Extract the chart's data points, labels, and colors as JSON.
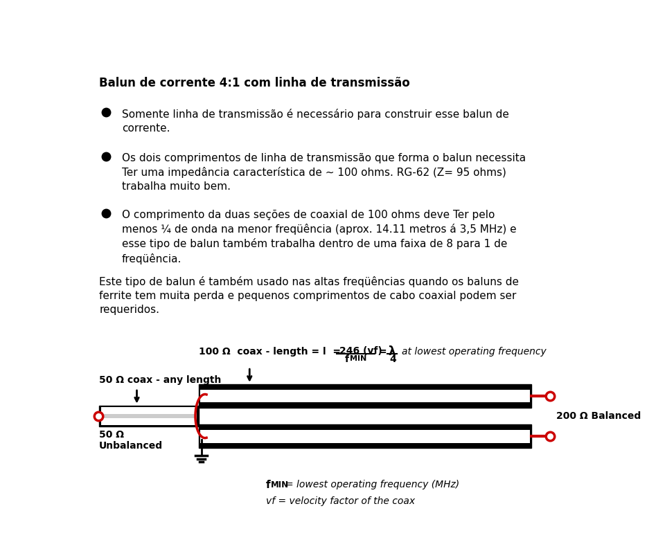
{
  "title": "Balun de corrente 4:1 com linha de transmissão",
  "bullet1": "Somente linha de transmissão é necessário para construir esse balun de\ncorrente.",
  "bullet2": "Os dois comprimentos de linha de transmissão que forma o balun necessita\nTer uma impedância característica de ~ 100 ohms. RG-62 (Z= 95 ohms)\ntrabalha muito bem.",
  "bullet3": "O comprimento da duas seções de coaxial de 100 ohms deve Ter pelo\nmenos ¼ de onda na menor freqüência (aprox. 14.11 metros á 3,5 MHz) e\nesse tipo de balun também trabalha dentro de uma faixa de 8 para 1 de\nfreqüência.",
  "paragraph": "Este tipo de balun é também usado nas altas freqüências quando os baluns de\nferrite tem muita perda e pequenos comprimentos de cabo coaxial podem ser\nrequeridos.",
  "label_50_coax": "50 Ω coax - any length",
  "label_100_coax": "100 Ω  coax - length = l  =",
  "label_50_unbalanced": "50 Ω\nUnbalanced",
  "label_200_balanced": "200 Ω Balanced",
  "label_fmin_desc": "= lowest operating frequency (MHz)",
  "label_vf": "vf = velocity factor of the coax",
  "bg_color": "#ffffff",
  "text_color": "#000000",
  "red_color": "#cc0000"
}
